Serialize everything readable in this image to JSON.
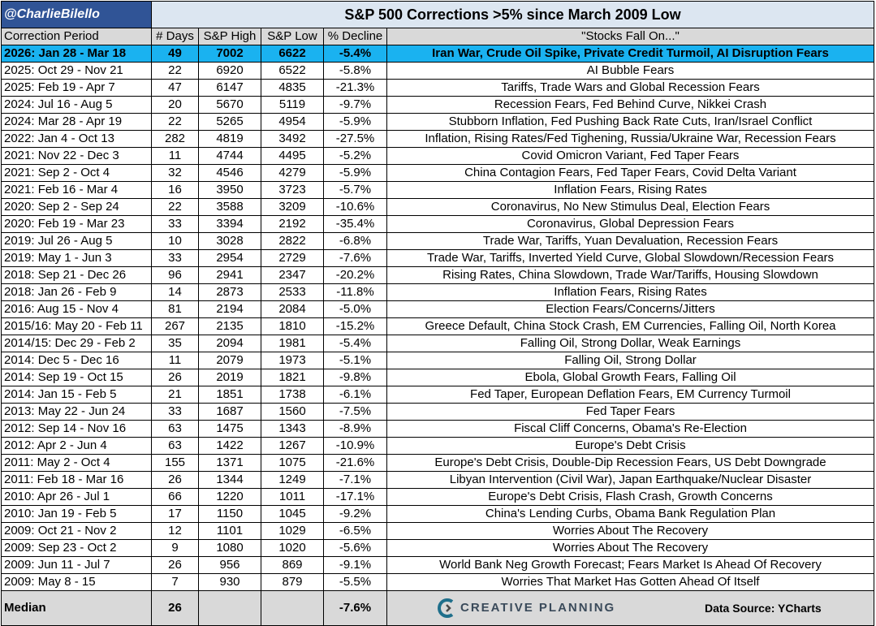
{
  "handle": "@CharlieBilello",
  "title": "S&P 500 Corrections >5% since March 2009 Low",
  "columns": [
    "Correction Period",
    "# Days",
    "S&P High",
    "S&P Low",
    "% Decline",
    "\"Stocks Fall On...\""
  ],
  "rows": [
    [
      "2026: Jan 28 - Mar 18",
      "49",
      "7002",
      "6622",
      "-5.4%",
      "Iran War, Crude Oil Spike, Private Credit Turmoil, AI Disruption Fears"
    ],
    [
      "2025: Oct 29 - Nov 21",
      "22",
      "6920",
      "6522",
      "-5.8%",
      "AI Bubble Fears"
    ],
    [
      "2025: Feb 19 - Apr 7",
      "47",
      "6147",
      "4835",
      "-21.3%",
      "Tariffs, Trade Wars and Global Recession Fears"
    ],
    [
      "2024: Jul 16 - Aug 5",
      "20",
      "5670",
      "5119",
      "-9.7%",
      "Recession Fears, Fed Behind Curve, Nikkei Crash"
    ],
    [
      "2024: Mar 28 - Apr 19",
      "22",
      "5265",
      "4954",
      "-5.9%",
      "Stubborn Inflation, Fed Pushing Back Rate Cuts, Iran/Israel Conflict"
    ],
    [
      "2022: Jan 4 - Oct 13",
      "282",
      "4819",
      "3492",
      "-27.5%",
      "Inflation, Rising Rates/Fed Tighening, Russia/Ukraine War, Recession Fears"
    ],
    [
      "2021: Nov 22 - Dec 3",
      "11",
      "4744",
      "4495",
      "-5.2%",
      "Covid Omicron Variant, Fed Taper Fears"
    ],
    [
      "2021: Sep 2 - Oct 4",
      "32",
      "4546",
      "4279",
      "-5.9%",
      "China Contagion Fears, Fed Taper Fears, Covid Delta Variant"
    ],
    [
      "2021: Feb 16 - Mar 4",
      "16",
      "3950",
      "3723",
      "-5.7%",
      "Inflation Fears, Rising Rates"
    ],
    [
      "2020: Sep 2 - Sep 24",
      "22",
      "3588",
      "3209",
      "-10.6%",
      "Coronavirus, No New Stimulus Deal, Election Fears"
    ],
    [
      "2020: Feb 19 - Mar 23",
      "33",
      "3394",
      "2192",
      "-35.4%",
      "Coronavirus, Global Depression Fears"
    ],
    [
      "2019: Jul 26 - Aug 5",
      "10",
      "3028",
      "2822",
      "-6.8%",
      "Trade War, Tariffs, Yuan Devaluation, Recession Fears"
    ],
    [
      "2019: May 1 - Jun 3",
      "33",
      "2954",
      "2729",
      "-7.6%",
      "Trade War, Tariffs, Inverted Yield Curve, Global Slowdown/Recession Fears"
    ],
    [
      "2018: Sep 21 - Dec 26",
      "96",
      "2941",
      "2347",
      "-20.2%",
      "Rising Rates, China Slowdown, Trade War/Tariffs, Housing Slowdown"
    ],
    [
      "2018: Jan 26 - Feb 9",
      "14",
      "2873",
      "2533",
      "-11.8%",
      "Inflation Fears, Rising Rates"
    ],
    [
      "2016: Aug 15 - Nov 4",
      "81",
      "2194",
      "2084",
      "-5.0%",
      "Election Fears/Concerns/Jitters"
    ],
    [
      "2015/16: May 20 - Feb 11",
      "267",
      "2135",
      "1810",
      "-15.2%",
      "Greece Default, China Stock Crash, EM Currencies, Falling Oil, North Korea"
    ],
    [
      "2014/15: Dec 29 - Feb 2",
      "35",
      "2094",
      "1981",
      "-5.4%",
      "Falling Oil, Strong Dollar, Weak Earnings"
    ],
    [
      "2014: Dec 5 - Dec 16",
      "11",
      "2079",
      "1973",
      "-5.1%",
      "Falling Oil, Strong Dollar"
    ],
    [
      "2014: Sep 19 - Oct 15",
      "26",
      "2019",
      "1821",
      "-9.8%",
      "Ebola, Global Growth Fears, Falling Oil"
    ],
    [
      "2014: Jan 15 - Feb 5",
      "21",
      "1851",
      "1738",
      "-6.1%",
      "Fed Taper, European Deflation Fears, EM Currency Turmoil"
    ],
    [
      "2013: May 22 - Jun 24",
      "33",
      "1687",
      "1560",
      "-7.5%",
      "Fed Taper Fears"
    ],
    [
      "2012: Sep 14 - Nov 16",
      "63",
      "1475",
      "1343",
      "-8.9%",
      "Fiscal Cliff Concerns, Obama's Re-Election"
    ],
    [
      "2012: Apr 2 - Jun 4",
      "63",
      "1422",
      "1267",
      "-10.9%",
      "Europe's Debt Crisis"
    ],
    [
      "2011: May 2 - Oct 4",
      "155",
      "1371",
      "1075",
      "-21.6%",
      "Europe's Debt Crisis, Double-Dip Recession Fears, US Debt Downgrade"
    ],
    [
      "2011: Feb 18 - Mar 16",
      "26",
      "1344",
      "1249",
      "-7.1%",
      "Libyan Intervention (Civil War), Japan Earthquake/Nuclear Disaster"
    ],
    [
      "2010: Apr 26 - Jul 1",
      "66",
      "1220",
      "1011",
      "-17.1%",
      "Europe's Debt Crisis, Flash Crash, Growth Concerns"
    ],
    [
      "2010: Jan 19 - Feb 5",
      "17",
      "1150",
      "1045",
      "-9.2%",
      "China's Lending Curbs, Obama Bank Regulation Plan"
    ],
    [
      "2009: Oct 21 - Nov 2",
      "12",
      "1101",
      "1029",
      "-6.5%",
      "Worries About The Recovery"
    ],
    [
      "2009: Sep 23 - Oct 2",
      "9",
      "1080",
      "1020",
      "-5.6%",
      "Worries About The Recovery"
    ],
    [
      "2009: Jun 11 - Jul 7",
      "26",
      "956",
      "869",
      "-9.1%",
      "World Bank Neg Growth Forecast; Fears Market Is Ahead Of Recovery"
    ],
    [
      "2009: May 8 - 15",
      "7",
      "930",
      "879",
      "-5.5%",
      "Worries That Market Has Gotten Ahead Of Itself"
    ]
  ],
  "footer": {
    "label": "Median",
    "days": "26",
    "decline": "-7.6%",
    "logo": "CREATIVE PLANNING",
    "source": "Data Source: YCharts"
  }
}
